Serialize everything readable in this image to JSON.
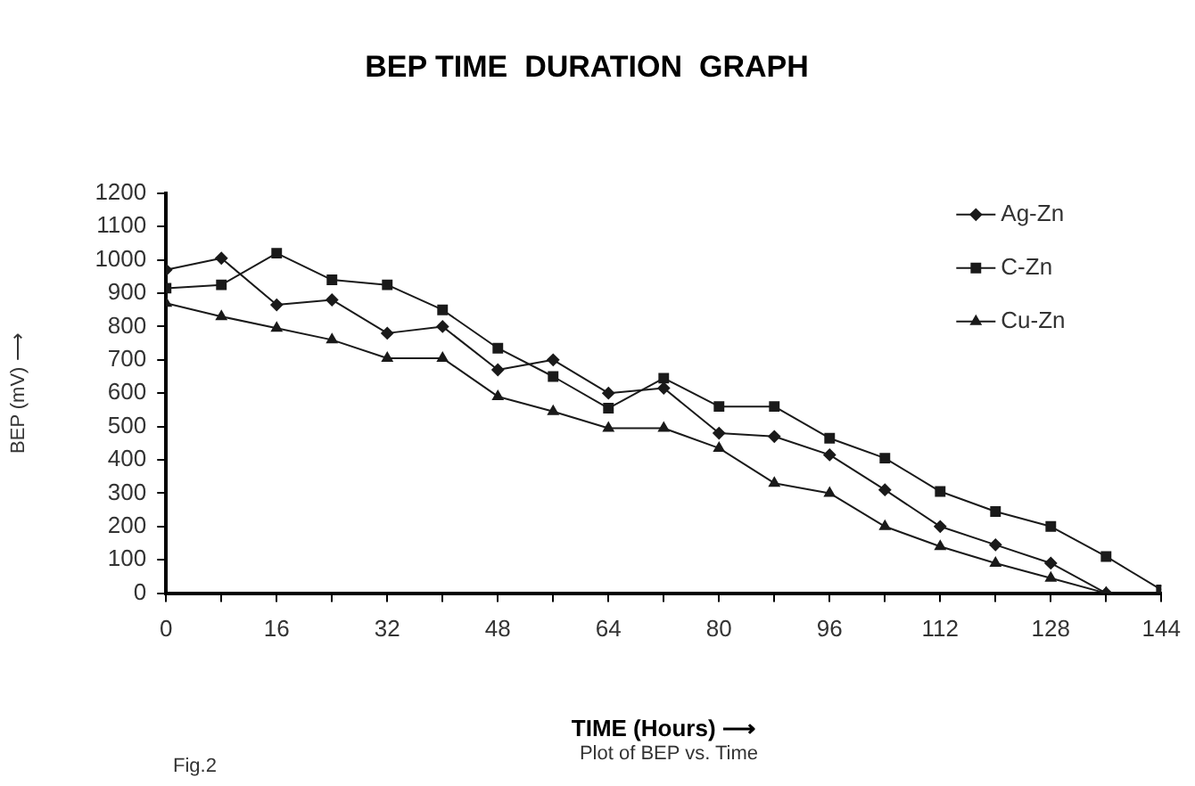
{
  "chart_data": {
    "type": "line",
    "title": "BEP TIME  DURATION  GRAPH",
    "xlabel": "TIME (Hours) ⟶",
    "ylabel": "BEP (mV) ⟶",
    "annotations": [
      "Plot of BEP vs. Time",
      "Fig.2"
    ],
    "x": [
      0,
      8,
      16,
      24,
      32,
      40,
      48,
      56,
      64,
      72,
      80,
      88,
      96,
      104,
      112,
      120,
      128,
      136,
      144
    ],
    "series": [
      {
        "name": "Ag-Zn",
        "color": "#1a1a1a",
        "marker": "diamond",
        "values": [
          970,
          1005,
          865,
          880,
          780,
          800,
          670,
          700,
          600,
          615,
          480,
          470,
          415,
          310,
          200,
          145,
          90,
          0,
          null
        ]
      },
      {
        "name": "C-Zn",
        "color": "#1a1a1a",
        "marker": "square",
        "values": [
          915,
          925,
          1020,
          940,
          925,
          850,
          735,
          650,
          555,
          645,
          560,
          560,
          465,
          405,
          305,
          245,
          200,
          110,
          10
        ]
      },
      {
        "name": "Cu-Zn",
        "color": "#1a1a1a",
        "marker": "triangle",
        "values": [
          870,
          830,
          795,
          760,
          705,
          705,
          590,
          545,
          495,
          495,
          435,
          330,
          300,
          200,
          140,
          90,
          45,
          0,
          null
        ]
      }
    ],
    "xlim": [
      0,
      144
    ],
    "xticks": [
      0,
      {
        "value": 8,
        "label": null
      },
      16,
      {
        "value": 24,
        "label": null
      },
      32,
      {
        "value": 40,
        "label": null
      },
      48,
      {
        "value": 56,
        "label": null
      },
      64,
      {
        "value": 72,
        "label": null
      },
      80,
      {
        "value": 88,
        "label": null
      },
      96,
      {
        "value": 104,
        "label": null
      },
      112,
      {
        "value": 120,
        "label": null
      },
      128,
      {
        "value": 136,
        "label": null
      },
      144
    ],
    "ylim": [
      0,
      1200
    ],
    "yticks": [
      0,
      100,
      200,
      300,
      400,
      500,
      600,
      700,
      800,
      900,
      1000,
      1100,
      1200
    ],
    "grid": false,
    "legend": "top right",
    "line_style": "solid"
  }
}
